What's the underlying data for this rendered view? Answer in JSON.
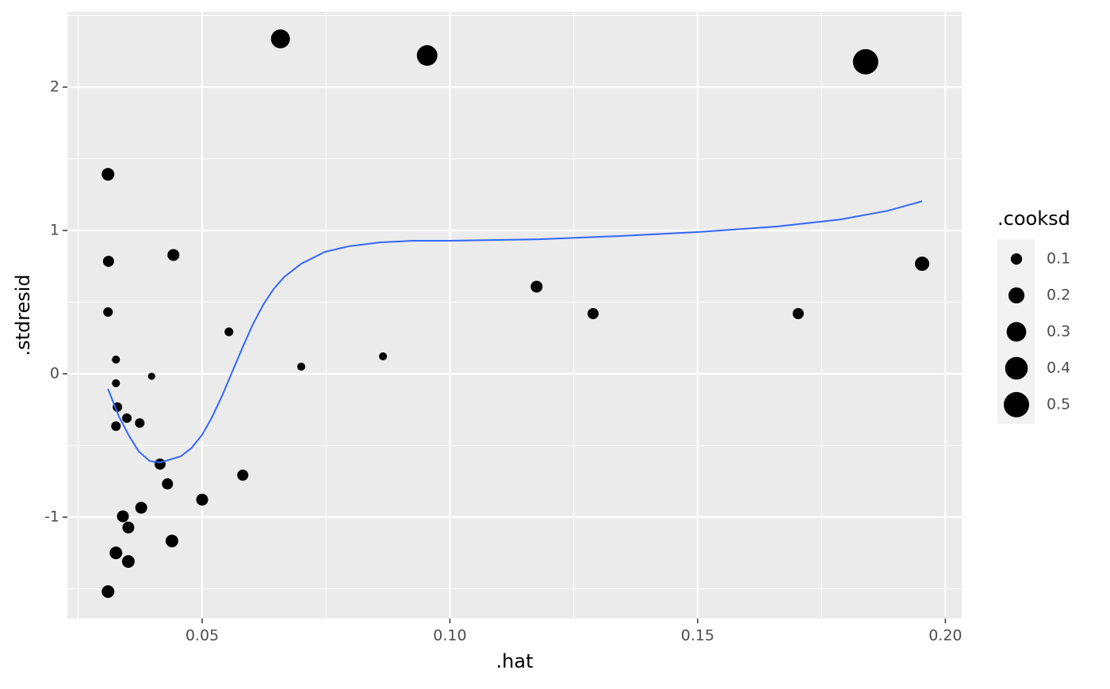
{
  "chart_data": {
    "type": "scatter",
    "x_label": ".hat",
    "y_label": ".stdresid",
    "size_label": ".cooksd",
    "x": [
      0.0658,
      0.0954,
      0.1839,
      0.031,
      0.0311,
      0.031,
      0.0442,
      0.1953,
      0.1175,
      0.1289,
      0.1703,
      0.0554,
      0.07,
      0.0865,
      0.0326,
      0.0398,
      0.0326,
      0.0329,
      0.0348,
      0.0326,
      0.0374,
      0.0415,
      0.043,
      0.0582,
      0.05,
      0.0377,
      0.034,
      0.0351,
      0.0439,
      0.0326,
      0.0351,
      0.031
    ],
    "values": [
      2.337,
      2.221,
      2.177,
      1.392,
      0.785,
      0.431,
      0.829,
      0.768,
      0.608,
      0.42,
      0.42,
      0.293,
      0.05,
      0.122,
      0.099,
      -0.017,
      -0.066,
      -0.232,
      -0.309,
      -0.365,
      -0.343,
      -0.63,
      -0.768,
      -0.707,
      -0.878,
      -0.934,
      -0.994,
      -1.072,
      -1.166,
      -1.249,
      -1.309,
      -1.519
    ],
    "sizes": [
      0.28,
      0.33,
      0.5,
      0.125,
      0.096,
      0.07,
      0.11,
      0.16,
      0.11,
      0.096,
      0.096,
      0.06,
      0.05,
      0.05,
      0.05,
      0.04,
      0.05,
      0.07,
      0.07,
      0.07,
      0.07,
      0.096,
      0.096,
      0.096,
      0.11,
      0.11,
      0.11,
      0.11,
      0.125,
      0.125,
      0.125,
      0.125
    ],
    "color": "#000000",
    "smooth": {
      "color": "#3366ff",
      "x": [
        0.031,
        0.0332,
        0.0353,
        0.0372,
        0.0394,
        0.0415,
        0.0457,
        0.0478,
        0.05,
        0.0519,
        0.054,
        0.0561,
        0.0582,
        0.0602,
        0.0623,
        0.0644,
        0.0665,
        0.07,
        0.0748,
        0.0796,
        0.086,
        0.0924,
        0.0999,
        0.118,
        0.134,
        0.15,
        0.166,
        0.1788,
        0.1884,
        0.1953
      ],
      "values": [
        -0.105,
        -0.298,
        -0.436,
        -0.541,
        -0.608,
        -0.619,
        -0.575,
        -0.519,
        -0.425,
        -0.309,
        -0.155,
        0.017,
        0.188,
        0.343,
        0.481,
        0.591,
        0.674,
        0.768,
        0.851,
        0.89,
        0.917,
        0.928,
        0.928,
        0.939,
        0.961,
        0.989,
        1.028,
        1.077,
        1.138,
        1.204
      ]
    },
    "size_breaks": [
      0.1,
      0.2,
      0.3,
      0.4,
      0.5
    ],
    "xlim": [
      0.0228,
      0.2033
    ],
    "ylim": [
      -1.707,
      2.525
    ],
    "xticks": [
      0.05,
      {
        "value": 0.1,
        "label": "0.10"
      },
      0.15,
      {
        "value": 0.2,
        "label": "0.20"
      }
    ],
    "yticks": [
      -1,
      0,
      1,
      2
    ],
    "grid": true
  }
}
